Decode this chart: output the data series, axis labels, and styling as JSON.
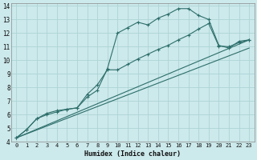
{
  "xlabel": "Humidex (Indice chaleur)",
  "bg_color": "#cce9eb",
  "line_color": "#2d6e6b",
  "grid_color": "#aed4d6",
  "xlim": [
    -0.5,
    23.5
  ],
  "ylim": [
    4,
    14.2
  ],
  "xticks": [
    0,
    1,
    2,
    3,
    4,
    5,
    6,
    7,
    8,
    9,
    10,
    11,
    12,
    13,
    14,
    15,
    16,
    17,
    18,
    19,
    20,
    21,
    22,
    23
  ],
  "yticks": [
    4,
    5,
    6,
    7,
    8,
    9,
    10,
    11,
    12,
    13,
    14
  ],
  "curve1_x": [
    0,
    1,
    2,
    3,
    4,
    5,
    6,
    7,
    8,
    9,
    10,
    11,
    12,
    13,
    14,
    15,
    16,
    17,
    18,
    19,
    20,
    21,
    22,
    23
  ],
  "curve1_y": [
    4.3,
    4.9,
    5.7,
    6.1,
    6.3,
    6.4,
    6.5,
    7.3,
    7.8,
    9.4,
    12.0,
    12.4,
    12.8,
    12.6,
    13.1,
    13.4,
    13.8,
    13.8,
    13.3,
    13.0,
    11.1,
    10.9,
    11.4,
    11.5
  ],
  "curve2_x": [
    0,
    1,
    2,
    3,
    4,
    5,
    6,
    7,
    8,
    9,
    10,
    11,
    12,
    13,
    14,
    15,
    16,
    17,
    18,
    19,
    20,
    21,
    22,
    23
  ],
  "curve2_y": [
    4.3,
    4.9,
    5.7,
    6.0,
    6.2,
    6.4,
    6.5,
    7.5,
    8.2,
    9.3,
    9.3,
    9.7,
    10.1,
    10.45,
    10.8,
    11.1,
    11.5,
    11.85,
    12.3,
    12.7,
    11.05,
    11.0,
    11.3,
    11.5
  ],
  "line1_x": [
    0,
    23
  ],
  "line1_y": [
    4.3,
    10.9
  ],
  "line2_x": [
    0,
    23
  ],
  "line2_y": [
    4.3,
    11.5
  ],
  "xlabel_fontsize": 6.0,
  "tick_fontsize": 5.0
}
